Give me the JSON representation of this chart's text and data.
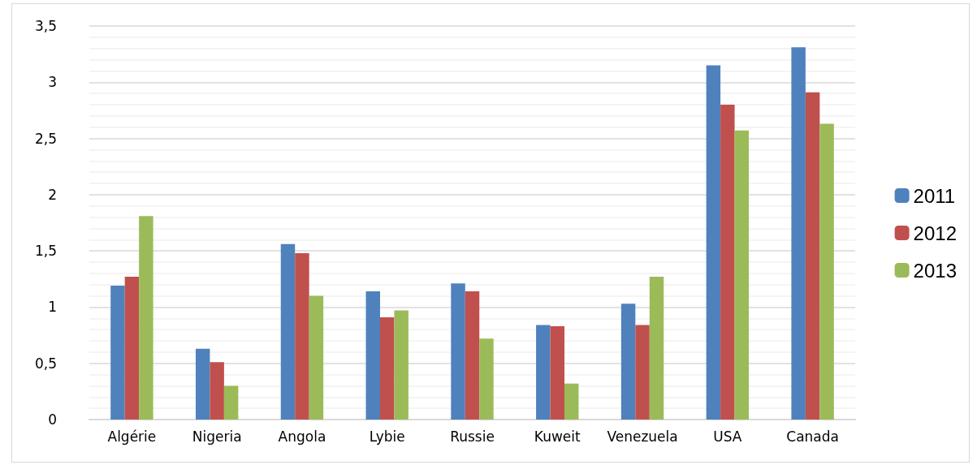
{
  "chart_data": {
    "type": "bar",
    "categories": [
      "Algérie",
      "Nigeria",
      "Angola",
      "Lybie",
      "Russie",
      "Kuweit",
      "Venezuela",
      "USA",
      "Canada"
    ],
    "series": [
      {
        "name": "2011",
        "color": "#4f81bd",
        "values": [
          1.19,
          0.63,
          1.56,
          1.14,
          1.21,
          0.84,
          1.03,
          3.15,
          3.31
        ]
      },
      {
        "name": "2012",
        "color": "#c0504d",
        "values": [
          1.27,
          0.51,
          1.48,
          0.91,
          1.14,
          0.83,
          0.84,
          2.8,
          2.91
        ]
      },
      {
        "name": "2013",
        "color": "#9bbb59",
        "values": [
          1.81,
          0.3,
          1.1,
          0.97,
          0.72,
          0.32,
          1.27,
          2.57,
          2.63
        ]
      }
    ],
    "ylim": [
      0,
      3.5
    ],
    "yticks": [
      0,
      {
        "value": 0.5,
        "label": "0,5"
      },
      1,
      {
        "value": 1.5,
        "label": "1,5"
      },
      2,
      {
        "value": 2.5,
        "label": "2,5"
      },
      3,
      {
        "value": 3.5,
        "label": "3,5"
      }
    ],
    "grid": "y",
    "legend": "right"
  }
}
